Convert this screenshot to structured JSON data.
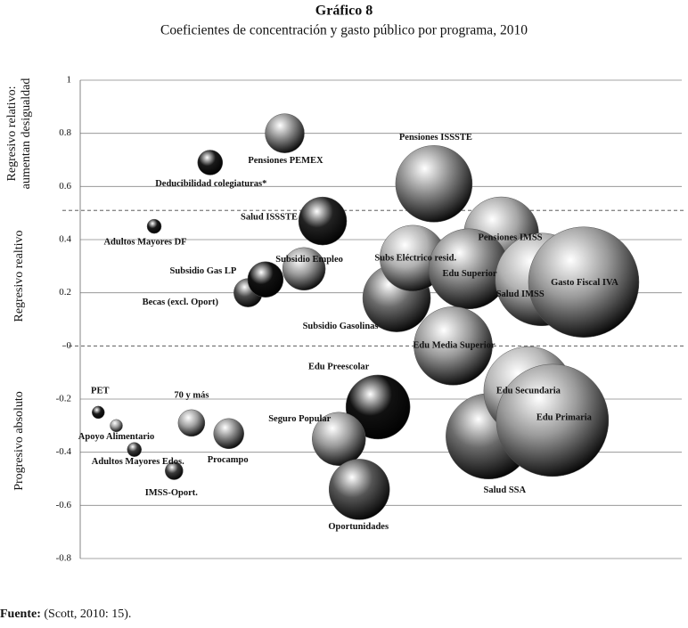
{
  "chart_data": {
    "type": "bubble",
    "title": "Gráfico 8",
    "subtitle": "Coeficientes de concentración y gasto público por programa, 2010",
    "zone_labels": [
      [
        "Regresivo relativo:",
        "aumentan desigualdad"
      ],
      [
        "Regresivo realtivo"
      ],
      [
        "Progresivo absoluto"
      ]
    ],
    "source_label": "Fuente:",
    "source_text": "(Scott, 2010: 15).",
    "ylim": [
      -0.8,
      1
    ],
    "yticks": [
      -0.8,
      -0.6,
      -0.4,
      -0.2,
      0,
      0.2,
      0.4,
      0.6,
      0.8,
      1
    ],
    "xlim": [
      0,
      100
    ],
    "grid": true,
    "dashed_lines": [
      0.51,
      0
    ],
    "points": [
      {
        "name": "PET",
        "x": 3,
        "y": -0.25,
        "size": 49,
        "color": "#1a1a1a"
      },
      {
        "name": "Apoyo Alimentario",
        "x": 6,
        "y": -0.3,
        "size": 49,
        "color": "#9a9a9a"
      },
      {
        "name": "Adultos Mayores Edos.",
        "x": 9,
        "y": -0.39,
        "size": 64,
        "color": "#3a3a3a"
      },
      {
        "name": "IMSS-Oport.",
        "x": 15.6,
        "y": -0.47,
        "size": 100,
        "color": "#3a3a3a"
      },
      {
        "name": "70 y más",
        "x": 18.5,
        "y": -0.29,
        "size": 225,
        "color": "#a0a0a0"
      },
      {
        "name": "Procampo",
        "x": 24.7,
        "y": -0.33,
        "size": 289,
        "color": "#8a8a8a"
      },
      {
        "name": "Adultos Mayores DF",
        "x": 12.3,
        "y": 0.45,
        "size": 64,
        "color": "#1a1a1a"
      },
      {
        "name": "Deducibilidad colegiaturas*",
        "x": 21.6,
        "y": 0.69,
        "size": 196,
        "color": "#1a1a1a"
      },
      {
        "name": "Pensiones PEMEX",
        "x": 34,
        "y": 0.8,
        "size": 484,
        "color": "#8a8a8a"
      },
      {
        "name": "Becas (excl. Oport)",
        "x": 27.9,
        "y": 0.2,
        "size": 256,
        "color": "#4a4a4a"
      },
      {
        "name": "Subsidio Gas LP",
        "x": 30.8,
        "y": 0.25,
        "size": 400,
        "color": "#111111"
      },
      {
        "name": "Subsidio Empleo",
        "x": 37.2,
        "y": 0.29,
        "size": 576,
        "color": "#9a9a9a"
      },
      {
        "name": "Salud ISSSTE",
        "x": 40.3,
        "y": 0.47,
        "size": 729,
        "color": "#222222"
      },
      {
        "name": "Subsidio Gasolinas",
        "x": 52.6,
        "y": 0.18,
        "size": 1444,
        "color": "#6a6a6a"
      },
      {
        "name": "Subs Eléctrico resid.",
        "x": 55.3,
        "y": 0.33,
        "size": 1369,
        "color": "#b0b0b0"
      },
      {
        "name": "Pensiones ISSSTE",
        "x": 58.8,
        "y": 0.61,
        "size": 1849,
        "color": "#8a8a8a"
      },
      {
        "name": "Pensiones IMSS",
        "x": 70,
        "y": 0.42,
        "size": 1764,
        "color": "#a5a5a5"
      },
      {
        "name": "Edu Superior",
        "x": 64.6,
        "y": 0.29,
        "size": 2025,
        "color": "#8a8a8a"
      },
      {
        "name": "Salud IMSS",
        "x": 76.7,
        "y": 0.25,
        "size": 2704,
        "color": "#b0b0b0"
      },
      {
        "name": "Gasto Fiscal IVA",
        "x": 83.7,
        "y": 0.24,
        "size": 3844,
        "color": "#9a9a9a"
      },
      {
        "name": "Edu Media Superior",
        "x": 62,
        "y": 0,
        "size": 1936,
        "color": "#999999"
      },
      {
        "name": "Edu Preescolar",
        "x": 49.5,
        "y": -0.23,
        "size": 1296,
        "color": "#111111"
      },
      {
        "name": "Seguro Popular",
        "x": 43,
        "y": -0.35,
        "size": 900,
        "color": "#999999"
      },
      {
        "name": "Oportunidades",
        "x": 46.4,
        "y": -0.54,
        "size": 1156,
        "color": "#555555"
      },
      {
        "name": "Salud SSA",
        "x": 67.9,
        "y": -0.34,
        "size": 2304,
        "color": "#6a6a6a"
      },
      {
        "name": "Edu Secundaria",
        "x": 74.5,
        "y": -0.17,
        "size": 2500,
        "color": "#b5b5b5"
      },
      {
        "name": "Edu Primaria",
        "x": 78.5,
        "y": -0.28,
        "size": 3969,
        "color": "#9a9a9a"
      }
    ]
  }
}
